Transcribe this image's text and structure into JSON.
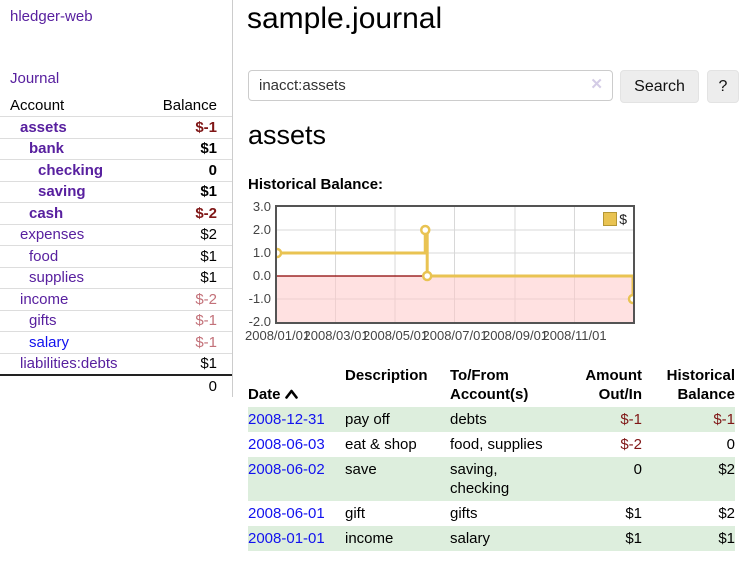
{
  "colors": {
    "purple_link": "#58209f",
    "blue_link": "#1212ee",
    "negative_strong": "#7f1616",
    "negative_soft": "#c37179",
    "series_gold": "#e9c352",
    "grid": "#d8d8d8",
    "zero_line": "#8b0000",
    "negative_region": "#ffc9c9",
    "row_stripe_green": "#ddeedd"
  },
  "sidebar": {
    "brand": "hledger-web",
    "nav_journal": "Journal",
    "account_header": "Account",
    "balance_header": "Balance",
    "accounts": [
      {
        "name": "assets",
        "level": 1,
        "bold": true,
        "balance": "$-1",
        "neg": "strong",
        "blue": false
      },
      {
        "name": "bank",
        "level": 2,
        "bold": true,
        "balance": "$1",
        "neg": "none",
        "blue": false
      },
      {
        "name": "checking",
        "level": 3,
        "bold": true,
        "balance": "0",
        "neg": "none",
        "blue": false
      },
      {
        "name": "saving",
        "level": 3,
        "bold": true,
        "balance": "$1",
        "neg": "none",
        "blue": false
      },
      {
        "name": "cash",
        "level": 2,
        "bold": true,
        "balance": "$-2",
        "neg": "strong",
        "blue": false
      },
      {
        "name": "expenses",
        "level": 1,
        "bold": false,
        "balance": "$2",
        "neg": "none",
        "blue": false
      },
      {
        "name": "food",
        "level": 2,
        "bold": false,
        "balance": "$1",
        "neg": "none",
        "blue": false
      },
      {
        "name": "supplies",
        "level": 2,
        "bold": false,
        "balance": "$1",
        "neg": "none",
        "blue": false
      },
      {
        "name": "income",
        "level": 1,
        "bold": false,
        "balance": "$-2",
        "neg": "soft",
        "blue": false
      },
      {
        "name": "gifts",
        "level": 2,
        "bold": false,
        "balance": "$-1",
        "neg": "soft",
        "blue": false
      },
      {
        "name": "salary",
        "level": 2,
        "bold": false,
        "balance": "$-1",
        "neg": "soft",
        "blue": true
      },
      {
        "name": "liabilities:debts",
        "level": 1,
        "bold": false,
        "balance": "$1",
        "neg": "none",
        "blue": false
      }
    ],
    "total": "0"
  },
  "header": {
    "title": "sample.journal"
  },
  "search": {
    "value": "inacct:assets",
    "clear_icon": "✕",
    "search_button": "Search",
    "help_button": "?"
  },
  "account_page": {
    "heading": "assets",
    "chart_label": "Historical Balance:"
  },
  "chart_data": {
    "type": "line",
    "step": true,
    "title": "Historical Balance",
    "legend": "$",
    "legend_position": "top-right",
    "grid": true,
    "ylim": [
      -2.0,
      3.0
    ],
    "y_ticks": [
      "3.0",
      "2.0",
      "1.0",
      "0.0",
      "-1.0",
      "-2.0"
    ],
    "x_range": [
      "2008-01-01",
      "2008-12-31"
    ],
    "x_ticks": [
      "2008/01/01",
      "2008/03/01",
      "2008/05/01",
      "2008/07/01",
      "2008/09/01",
      "2008/11/01"
    ],
    "negative_region_below": 0,
    "series": [
      {
        "name": "$",
        "points": [
          [
            "2008-01-01",
            1.0
          ],
          [
            "2008-06-01",
            2.0
          ],
          [
            "2008-06-03",
            0.0
          ],
          [
            "2008-12-31",
            -1.0
          ]
        ]
      }
    ]
  },
  "register": {
    "headers": {
      "date": "Date",
      "description": "Description",
      "accounts": "To/From\nAccount(s)",
      "amount": "Amount\nOut/In",
      "balance": "Historical\nBalance"
    },
    "rows": [
      {
        "date": "2008-12-31",
        "description": "pay off",
        "accounts": "debts",
        "amount": "$-1",
        "balance": "$-1",
        "amount_neg": true,
        "balance_neg": true
      },
      {
        "date": "2008-06-03",
        "description": "eat & shop",
        "accounts": "food, supplies",
        "amount": "$-2",
        "balance": "0",
        "amount_neg": true,
        "balance_neg": false
      },
      {
        "date": "2008-06-02",
        "description": "save",
        "accounts": "saving,\nchecking",
        "amount": "0",
        "balance": "$2",
        "amount_neg": false,
        "balance_neg": false
      },
      {
        "date": "2008-06-01",
        "description": "gift",
        "accounts": "gifts",
        "amount": "$1",
        "balance": "$2",
        "amount_neg": false,
        "balance_neg": false
      },
      {
        "date": "2008-01-01",
        "description": "income",
        "accounts": "salary",
        "amount": "$1",
        "balance": "$1",
        "amount_neg": false,
        "balance_neg": false
      }
    ]
  }
}
